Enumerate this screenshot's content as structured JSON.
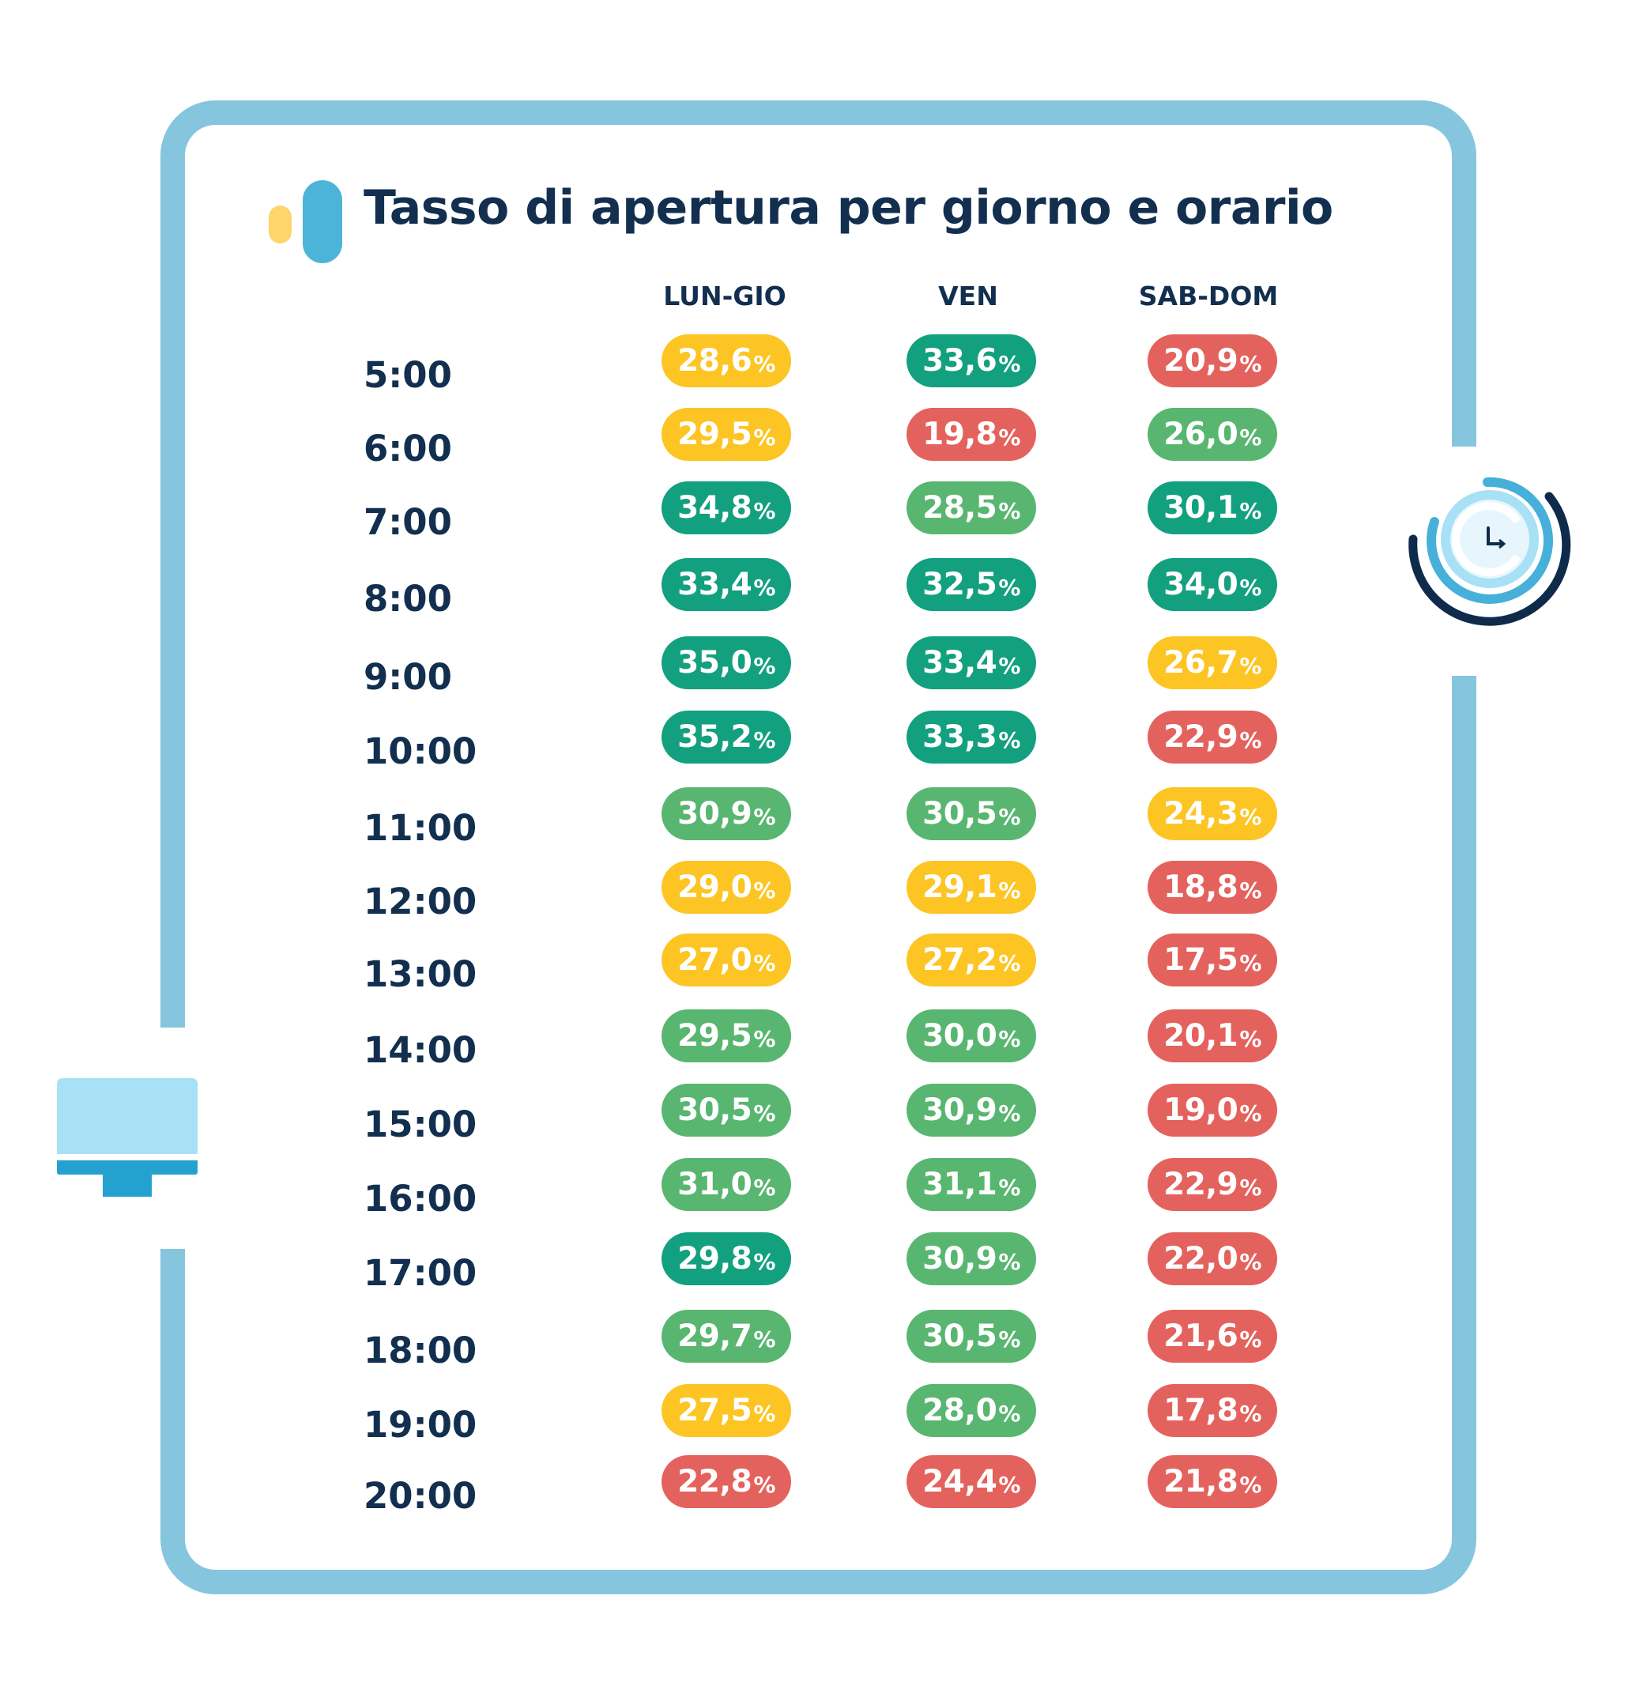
{
  "title": "Tasso di apertura per giorno e orario",
  "colors": {
    "frame": "#85c6de",
    "title_text": "#122f4f",
    "logo_yellow": "#fdd56a",
    "logo_blue": "#4cb4d8",
    "dark_green": "#12a07f",
    "light_green": "#58b670",
    "yellow": "#fcc524",
    "red": "#e4625d"
  },
  "icons": [
    "monitor-icon",
    "clock-icon"
  ],
  "chart_data": {
    "type": "table",
    "columns": [
      "LUN-GIO",
      "VEN",
      "SAB-DOM"
    ],
    "rows": [
      {
        "time": "5:00",
        "values": [
          "28,6",
          "33,6",
          "20,9"
        ],
        "colors": [
          "yellow",
          "dark_green",
          "red"
        ]
      },
      {
        "time": "6:00",
        "values": [
          "29,5",
          "19,8",
          "26,0"
        ],
        "colors": [
          "yellow",
          "red",
          "light_green"
        ]
      },
      {
        "time": "7:00",
        "values": [
          "34,8",
          "28,5",
          "30,1"
        ],
        "colors": [
          "dark_green",
          "light_green",
          "dark_green"
        ]
      },
      {
        "time": "8:00",
        "values": [
          "33,4",
          "32,5",
          "34,0"
        ],
        "colors": [
          "dark_green",
          "dark_green",
          "dark_green"
        ]
      },
      {
        "time": "9:00",
        "values": [
          "35,0",
          "33,4",
          "26,7"
        ],
        "colors": [
          "dark_green",
          "dark_green",
          "yellow"
        ]
      },
      {
        "time": "10:00",
        "values": [
          "35,2",
          "33,3",
          "22,9"
        ],
        "colors": [
          "dark_green",
          "dark_green",
          "red"
        ]
      },
      {
        "time": "11:00",
        "values": [
          "30,9",
          "30,5",
          "24,3"
        ],
        "colors": [
          "light_green",
          "light_green",
          "yellow"
        ]
      },
      {
        "time": "12:00",
        "values": [
          "29,0",
          "29,1",
          "18,8"
        ],
        "colors": [
          "yellow",
          "yellow",
          "red"
        ]
      },
      {
        "time": "13:00",
        "values": [
          "27,0",
          "27,2",
          "17,5"
        ],
        "colors": [
          "yellow",
          "yellow",
          "red"
        ]
      },
      {
        "time": "14:00",
        "values": [
          "29,5",
          "30,0",
          "20,1"
        ],
        "colors": [
          "light_green",
          "light_green",
          "red"
        ]
      },
      {
        "time": "15:00",
        "values": [
          "30,5",
          "30,9",
          "19,0"
        ],
        "colors": [
          "light_green",
          "light_green",
          "red"
        ]
      },
      {
        "time": "16:00",
        "values": [
          "31,0",
          "31,1",
          "22,9"
        ],
        "colors": [
          "light_green",
          "light_green",
          "red"
        ]
      },
      {
        "time": "17:00",
        "values": [
          "29,8",
          "30,9",
          "22,0"
        ],
        "colors": [
          "dark_green",
          "light_green",
          "red"
        ]
      },
      {
        "time": "18:00",
        "values": [
          "29,7",
          "30,5",
          "21,6"
        ],
        "colors": [
          "light_green",
          "light_green",
          "red"
        ]
      },
      {
        "time": "19:00",
        "values": [
          "27,5",
          "28,0",
          "17,8"
        ],
        "colors": [
          "yellow",
          "light_green",
          "red"
        ]
      },
      {
        "time": "20:00",
        "values": [
          "22,8",
          "24,4",
          "21,8"
        ],
        "colors": [
          "red",
          "red",
          "red"
        ]
      }
    ],
    "unit": "%"
  }
}
